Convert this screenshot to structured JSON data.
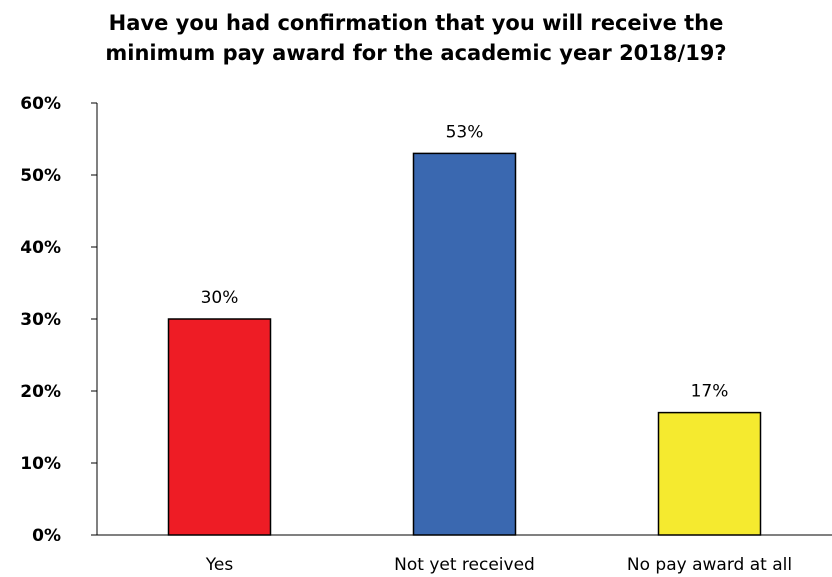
{
  "chart_data": {
    "type": "bar",
    "title_lines": [
      "Have you had confirmation that you will receive the",
      "minimum pay award for the academic year 2018/19?"
    ],
    "categories": [
      "Yes",
      "Not yet received",
      "No pay award at all"
    ],
    "values": [
      30,
      53,
      17
    ],
    "data_labels": [
      "30%",
      "53%",
      "17%"
    ],
    "bar_colors": [
      "#ee1c25",
      "#3a68b0",
      "#f5ea2f"
    ],
    "y_ticks": [
      0,
      10,
      20,
      30,
      40,
      50,
      60
    ],
    "y_tick_labels": [
      "0%",
      "10%",
      "20%",
      "30%",
      "40%",
      "50%",
      "60%"
    ],
    "ylim": [
      0,
      60
    ],
    "grid": false,
    "legend": "none"
  }
}
